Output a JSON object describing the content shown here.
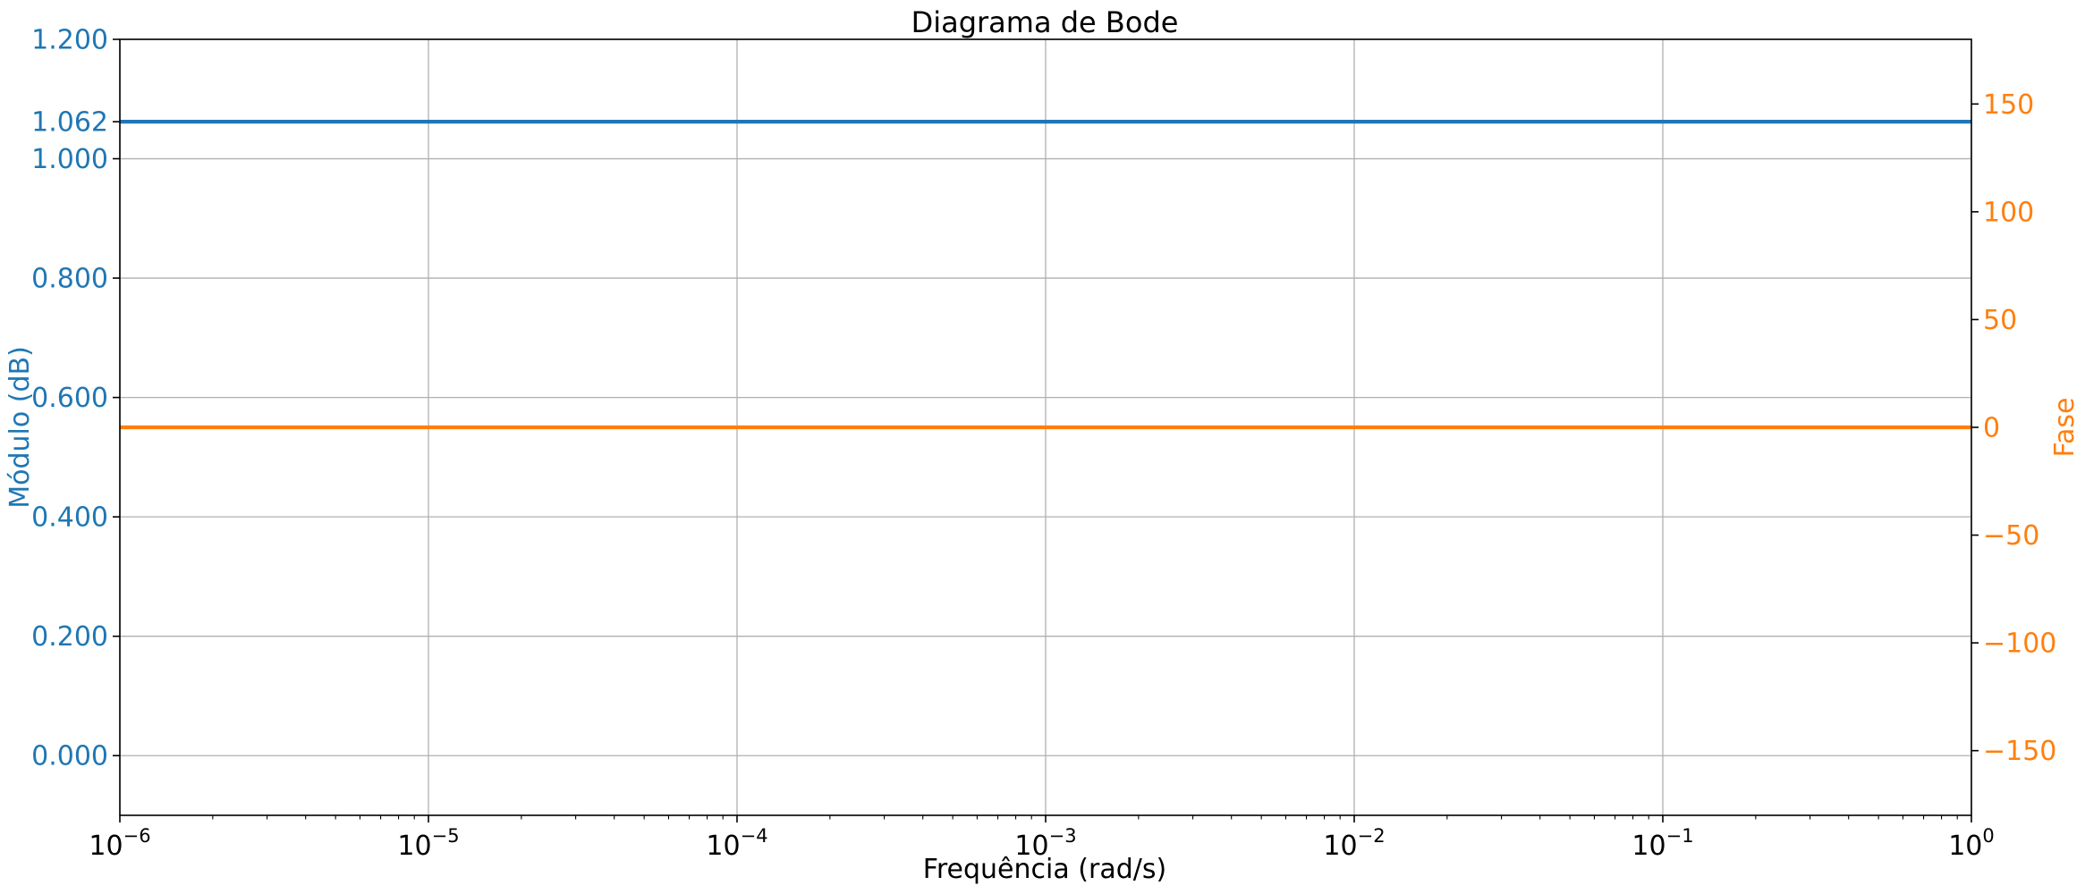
{
  "chart_data": {
    "type": "line",
    "title": "Diagrama de Bode",
    "xlabel": "Frequência (rad/s)",
    "x_scale": "log",
    "xlim": [
      1e-06,
      1
    ],
    "x_ticks": [
      {
        "value": 1e-06,
        "base": "10",
        "exp": "−6"
      },
      {
        "value": 1e-05,
        "base": "10",
        "exp": "−5"
      },
      {
        "value": 0.0001,
        "base": "10",
        "exp": "−4"
      },
      {
        "value": 0.001,
        "base": "10",
        "exp": "−3"
      },
      {
        "value": 0.01,
        "base": "10",
        "exp": "−2"
      },
      {
        "value": 0.1,
        "base": "10",
        "exp": "−1"
      },
      {
        "value": 1,
        "base": "10",
        "exp": "0"
      }
    ],
    "left_axis": {
      "label": "Módulo (dB)",
      "color": "#1f77b4",
      "ylim": [
        -0.1,
        1.2
      ],
      "ticks": [
        {
          "value": 0.0,
          "label": "0.000"
        },
        {
          "value": 0.2,
          "label": "0.200"
        },
        {
          "value": 0.4,
          "label": "0.400"
        },
        {
          "value": 0.6,
          "label": "0.600"
        },
        {
          "value": 0.8,
          "label": "0.800"
        },
        {
          "value": 1.0,
          "label": "1.000"
        },
        {
          "value": 1.062,
          "label": "1.062"
        },
        {
          "value": 1.2,
          "label": "1.200"
        }
      ]
    },
    "right_axis": {
      "label": "Fase",
      "color": "#ff7f0e",
      "ylim": [
        -180,
        180
      ],
      "ticks": [
        {
          "value": -150,
          "label": "−150"
        },
        {
          "value": -100,
          "label": "−100"
        },
        {
          "value": -50,
          "label": "−50"
        },
        {
          "value": 0,
          "label": "0"
        },
        {
          "value": 50,
          "label": "50"
        },
        {
          "value": 100,
          "label": "100"
        },
        {
          "value": 150,
          "label": "150"
        }
      ]
    },
    "series": [
      {
        "axis": "left",
        "color": "#1f77b4",
        "x": [
          1e-06,
          1
        ],
        "y": [
          1.062,
          1.062
        ]
      },
      {
        "axis": "right",
        "color": "#ff7f0e",
        "x": [
          1e-06,
          1
        ],
        "y": [
          0,
          0
        ]
      }
    ],
    "grid": true
  }
}
